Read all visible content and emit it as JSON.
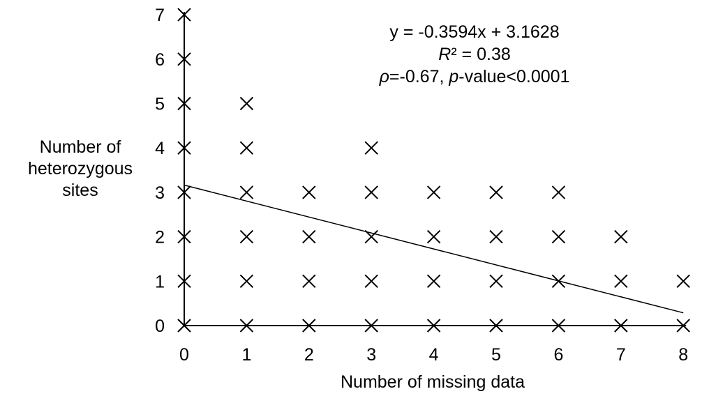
{
  "chart_data": {
    "type": "scatter",
    "title": "",
    "xlabel": "Number of missing data",
    "ylabel": [
      "Number of",
      "heterozygous",
      "sites"
    ],
    "xlim": [
      0,
      8
    ],
    "ylim": [
      0,
      7
    ],
    "x_ticks": [
      "0",
      "1",
      "2",
      "3",
      "4",
      "5",
      "6",
      "7",
      "8"
    ],
    "y_ticks": [
      "0",
      "1",
      "2",
      "3",
      "4",
      "5",
      "6",
      "7"
    ],
    "grid": false,
    "legend": "none",
    "marker": "x",
    "marker_color": "#000000",
    "points": [
      {
        "x": 0,
        "y": 0
      },
      {
        "x": 0,
        "y": 1
      },
      {
        "x": 0,
        "y": 2
      },
      {
        "x": 0,
        "y": 3
      },
      {
        "x": 0,
        "y": 4
      },
      {
        "x": 0,
        "y": 5
      },
      {
        "x": 0,
        "y": 6
      },
      {
        "x": 0,
        "y": 7
      },
      {
        "x": 1,
        "y": 0
      },
      {
        "x": 1,
        "y": 1
      },
      {
        "x": 1,
        "y": 2
      },
      {
        "x": 1,
        "y": 3
      },
      {
        "x": 1,
        "y": 4
      },
      {
        "x": 1,
        "y": 5
      },
      {
        "x": 2,
        "y": 0
      },
      {
        "x": 2,
        "y": 1
      },
      {
        "x": 2,
        "y": 2
      },
      {
        "x": 2,
        "y": 3
      },
      {
        "x": 3,
        "y": 0
      },
      {
        "x": 3,
        "y": 1
      },
      {
        "x": 3,
        "y": 2
      },
      {
        "x": 3,
        "y": 3
      },
      {
        "x": 3,
        "y": 4
      },
      {
        "x": 4,
        "y": 0
      },
      {
        "x": 4,
        "y": 1
      },
      {
        "x": 4,
        "y": 2
      },
      {
        "x": 4,
        "y": 3
      },
      {
        "x": 5,
        "y": 0
      },
      {
        "x": 5,
        "y": 1
      },
      {
        "x": 5,
        "y": 2
      },
      {
        "x": 5,
        "y": 3
      },
      {
        "x": 6,
        "y": 0
      },
      {
        "x": 6,
        "y": 1
      },
      {
        "x": 6,
        "y": 2
      },
      {
        "x": 6,
        "y": 3
      },
      {
        "x": 7,
        "y": 0
      },
      {
        "x": 7,
        "y": 1
      },
      {
        "x": 7,
        "y": 2
      },
      {
        "x": 8,
        "y": 0
      },
      {
        "x": 8,
        "y": 1
      }
    ],
    "trendline": {
      "slope": -0.3594,
      "intercept": 3.1628,
      "x_range": [
        0,
        8
      ]
    },
    "annotations": {
      "equation": "y = -0.3594x + 3.1628",
      "r2_symbol": "R",
      "r2_rest": "² = 0.38",
      "rho_symbol": "ρ",
      "rho_rest": "=-0.67, ",
      "p_symbol": "p",
      "p_rest": "-value<0.0001"
    }
  }
}
